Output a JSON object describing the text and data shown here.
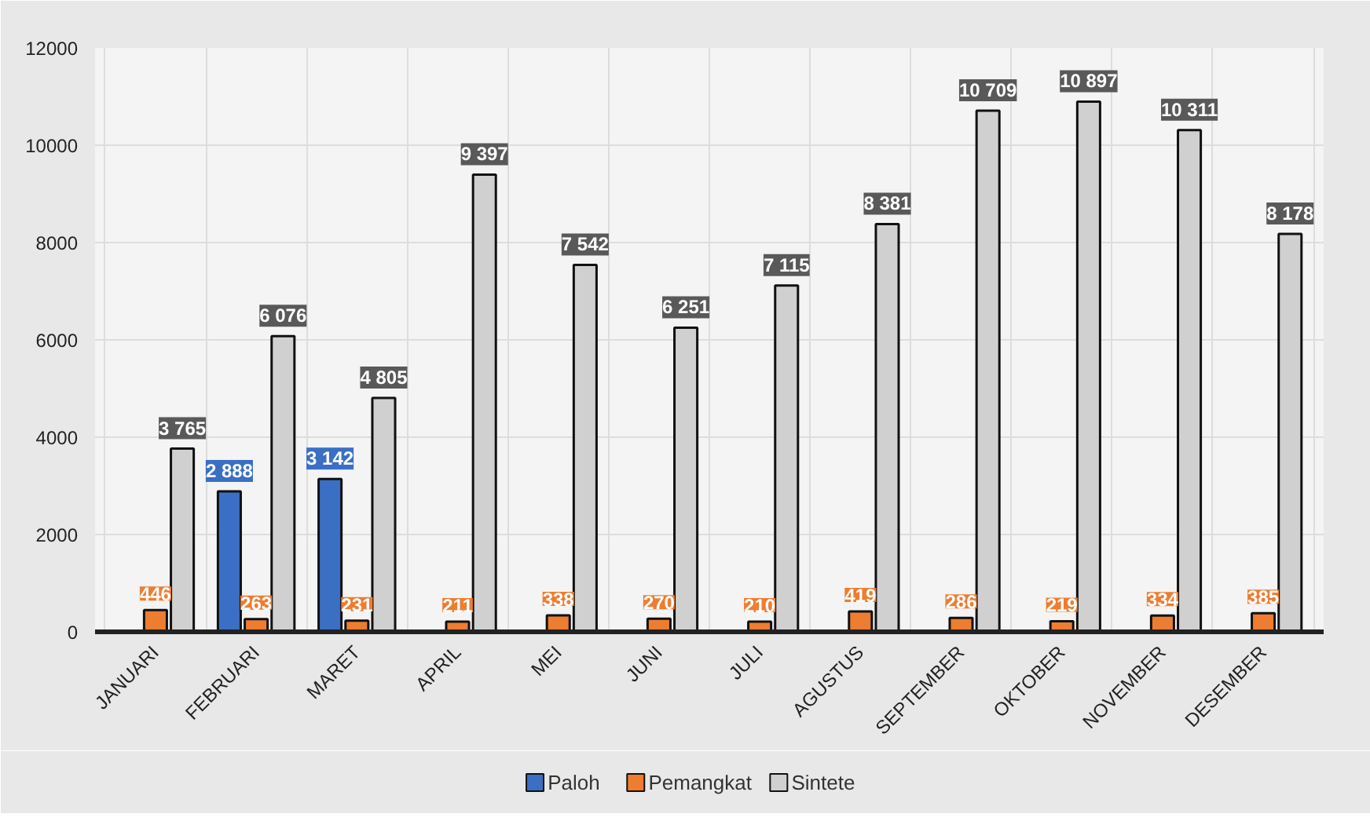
{
  "chart_data": {
    "type": "bar",
    "categories": [
      "JANUARI",
      "FEBRUARI",
      "MARET",
      "APRIL",
      "MEI",
      "JUNI",
      "JULI",
      "AGUSTUS",
      "SEPTEMBER",
      "OKTOBER",
      "NOVEMBER",
      "DESEMBER"
    ],
    "series": [
      {
        "name": "Paloh",
        "color": "#3a6fc4",
        "values": [
          null,
          2888,
          3142,
          null,
          null,
          null,
          null,
          null,
          null,
          null,
          null,
          null
        ],
        "value_labels": [
          null,
          "2 888",
          "3 142",
          null,
          null,
          null,
          null,
          null,
          null,
          null,
          null,
          null
        ]
      },
      {
        "name": "Pemangkat",
        "color": "#ed7d31",
        "values": [
          446,
          263,
          231,
          211,
          338,
          270,
          210,
          419,
          286,
          219,
          334,
          385
        ],
        "value_labels": [
          "446",
          "263",
          "231",
          "211",
          "338",
          "270",
          "210",
          "419",
          "286",
          "219",
          "334",
          "385"
        ]
      },
      {
        "name": "Sintete",
        "color": "#d0d0d0",
        "values": [
          3765,
          6076,
          4805,
          9397,
          7542,
          6251,
          7115,
          8381,
          10709,
          10897,
          10311,
          8178
        ],
        "value_labels": [
          "3 765",
          "6 076",
          "4 805",
          "9 397",
          "7 542",
          "6 251",
          "7 115",
          "8 381",
          "10 709",
          "10 897",
          "10 311",
          "8 178"
        ]
      }
    ],
    "ylim": [
      0,
      12000
    ],
    "yticks": [
      0,
      2000,
      4000,
      6000,
      8000,
      10000,
      12000
    ],
    "grid": true,
    "legend": "bottom"
  }
}
